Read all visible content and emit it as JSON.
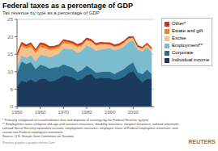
{
  "chart_data": {
    "type": "area",
    "stacked": true,
    "title": "Federal taxes as a percentage of GDP",
    "subtitle": "Tax revenue by type as a percentage of GDP",
    "x": [
      1950,
      1952,
      1954,
      1956,
      1958,
      1960,
      1962,
      1964,
      1966,
      1968,
      1970,
      1972,
      1974,
      1976,
      1978,
      1980,
      1982,
      1984,
      1986,
      1988,
      1990,
      1992,
      1994,
      1996,
      1998,
      2000,
      2002,
      2004,
      2006,
      2008
    ],
    "xlim": [
      1950,
      2009
    ],
    "xticks": [
      1950,
      1960,
      1970,
      1980,
      1990,
      2000
    ],
    "ylim": [
      0,
      25
    ],
    "yticks": [
      0,
      5,
      10,
      15,
      20,
      25
    ],
    "grid": true,
    "legend": "right",
    "series": [
      {
        "name": "Individual income",
        "color": "#1b3a5c",
        "values": [
          5.8,
          7.4,
          7.0,
          7.8,
          7.0,
          7.9,
          8.0,
          7.2,
          7.4,
          8.0,
          8.9,
          8.7,
          8.4,
          7.5,
          7.9,
          9.0,
          9.3,
          7.9,
          8.3,
          8.1,
          8.1,
          7.7,
          7.9,
          8.5,
          9.6,
          10.2,
          8.3,
          7.0,
          7.9,
          7.9
        ]
      },
      {
        "name": "Corporate",
        "color": "#2d6d8e",
        "values": [
          3.8,
          5.5,
          5.2,
          4.9,
          3.7,
          4.1,
          3.6,
          3.7,
          3.8,
          3.3,
          3.2,
          2.9,
          2.7,
          2.4,
          2.6,
          2.7,
          1.5,
          1.8,
          1.6,
          1.9,
          1.9,
          1.6,
          2.1,
          2.2,
          2.2,
          2.5,
          1.5,
          2.3,
          2.7,
          1.4
        ]
      },
      {
        "name": "Employment**",
        "color": "#7bbcce",
        "values": [
          1.6,
          1.7,
          1.8,
          2.0,
          2.2,
          2.8,
          3.0,
          3.2,
          3.4,
          3.8,
          4.5,
          4.9,
          5.3,
          5.5,
          5.5,
          5.8,
          6.1,
          6.3,
          6.4,
          6.5,
          6.7,
          6.8,
          6.5,
          6.5,
          6.7,
          6.2,
          6.5,
          6.5,
          6.4,
          6.2
        ]
      },
      {
        "name": "Excise",
        "color": "#f5c08a",
        "values": [
          2.8,
          2.7,
          2.6,
          2.5,
          2.4,
          2.3,
          2.2,
          2.1,
          1.8,
          1.7,
          1.6,
          1.5,
          1.4,
          1.6,
          1.5,
          1.5,
          1.7,
          1.5,
          1.5,
          1.3,
          1.0,
          1.0,
          0.9,
          0.9,
          0.8,
          0.7,
          0.7,
          0.7,
          0.7,
          0.8
        ]
      },
      {
        "name": "Estate and gift",
        "color": "#f5801e",
        "values": [
          0.6,
          0.6,
          0.6,
          0.6,
          0.6,
          0.7,
          0.7,
          0.6,
          0.5,
          0.5,
          0.6,
          0.5,
          0.4,
          0.4,
          0.4,
          0.2,
          0.2,
          0.2,
          0.2,
          0.2,
          0.2,
          0.2,
          0.2,
          0.3,
          0.3,
          0.2,
          0.2,
          0.2,
          0.2,
          0.2
        ]
      },
      {
        "name": "Other*",
        "color": "#c0392b",
        "values": [
          0.5,
          0.5,
          0.5,
          0.5,
          0.4,
          0.5,
          0.5,
          0.4,
          0.4,
          0.4,
          0.4,
          0.4,
          0.4,
          0.4,
          0.4,
          0.5,
          0.4,
          0.4,
          0.4,
          0.3,
          0.4,
          0.4,
          0.4,
          0.4,
          0.4,
          0.3,
          0.3,
          0.3,
          0.3,
          0.3
        ]
      }
    ],
    "annotations": [
      "* Primarily composed of customs/duties fees and deposits of earnings by the Federal Reserve system.",
      "** Employment taxes comprise old-age and survivors insurance, disability insurance, hospital insurance, railroad retirement,",
      "railroad Social Security equivalent account, employment insurance, employee share of Federal employees retirement, and",
      "certain non-Federal employees retirement.",
      "Source: U.S. Senate Joint Committee on Taxation",
      "Reuters graphics.graphicsletter.Com",
      "REUTERS"
    ]
  }
}
